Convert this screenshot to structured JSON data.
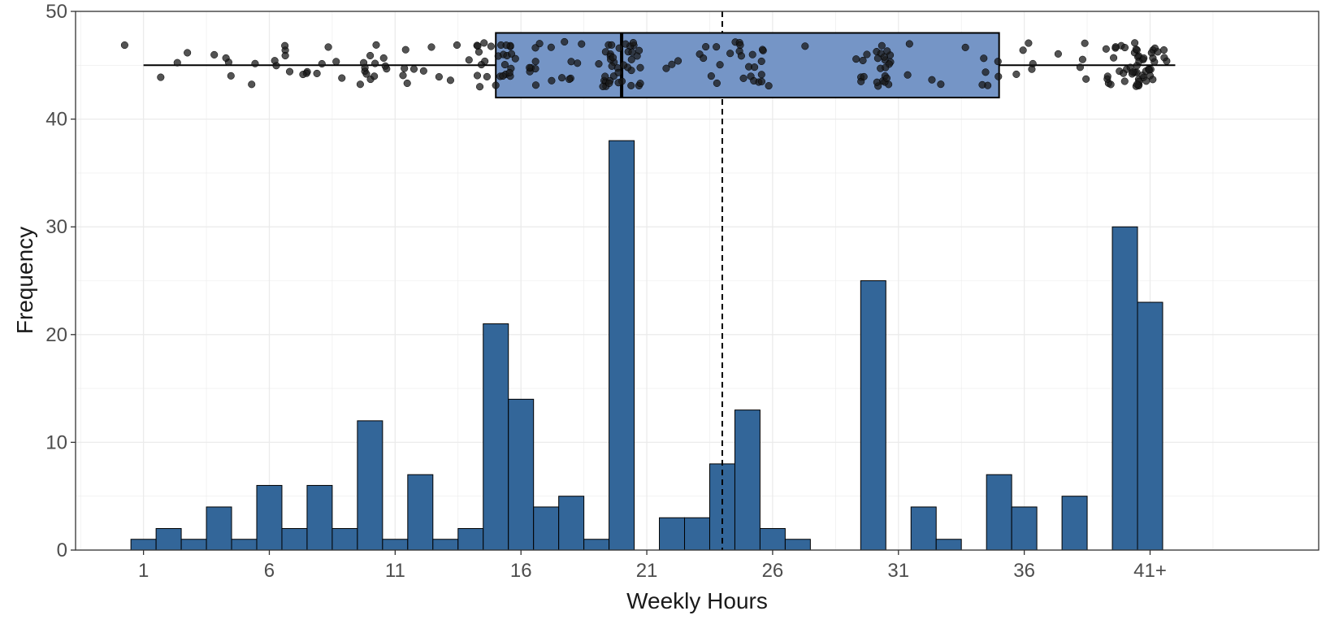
{
  "chart_data": {
    "type": "bar",
    "subtype": "histogram-with-boxplot",
    "xlabel": "Weekly Hours",
    "ylabel": "Frequency",
    "ylim": [
      0,
      50
    ],
    "xlim": [
      -1.7,
      47.7
    ],
    "y_ticks": [
      0,
      10,
      20,
      30,
      40,
      50
    ],
    "x_ticks": [
      {
        "value": 1,
        "label": "1"
      },
      {
        "value": 6,
        "label": "6"
      },
      {
        "value": 11,
        "label": "11"
      },
      {
        "value": 16,
        "label": "16"
      },
      {
        "value": 21,
        "label": "21"
      },
      {
        "value": 26,
        "label": "26"
      },
      {
        "value": 31,
        "label": "31"
      },
      {
        "value": 36,
        "label": "36"
      },
      {
        "value": 41,
        "label": "41+"
      }
    ],
    "grid": true,
    "bin_width": 1,
    "bins": [
      {
        "x": 1,
        "count": 1
      },
      {
        "x": 2,
        "count": 2
      },
      {
        "x": 3,
        "count": 1
      },
      {
        "x": 4,
        "count": 4
      },
      {
        "x": 5,
        "count": 1
      },
      {
        "x": 6,
        "count": 6
      },
      {
        "x": 7,
        "count": 2
      },
      {
        "x": 8,
        "count": 6
      },
      {
        "x": 9,
        "count": 2
      },
      {
        "x": 10,
        "count": 12
      },
      {
        "x": 11,
        "count": 1
      },
      {
        "x": 12,
        "count": 7
      },
      {
        "x": 13,
        "count": 1
      },
      {
        "x": 14,
        "count": 2
      },
      {
        "x": 15,
        "count": 21
      },
      {
        "x": 16,
        "count": 14
      },
      {
        "x": 17,
        "count": 4
      },
      {
        "x": 18,
        "count": 5
      },
      {
        "x": 19,
        "count": 1
      },
      {
        "x": 20,
        "count": 38
      },
      {
        "x": 22,
        "count": 3
      },
      {
        "x": 23,
        "count": 3
      },
      {
        "x": 24,
        "count": 8
      },
      {
        "x": 25,
        "count": 13
      },
      {
        "x": 26,
        "count": 2
      },
      {
        "x": 27,
        "count": 1
      },
      {
        "x": 30,
        "count": 25
      },
      {
        "x": 32,
        "count": 4
      },
      {
        "x": 33,
        "count": 1
      },
      {
        "x": 35,
        "count": 7
      },
      {
        "x": 36,
        "count": 4
      },
      {
        "x": 38,
        "count": 5
      },
      {
        "x": 40,
        "count": 30
      },
      {
        "x": 41,
        "count": 23
      }
    ],
    "mean": 24.0,
    "boxplot": {
      "min": 1,
      "q1": 15,
      "median": 20,
      "q3": 35,
      "max": 42,
      "y_center": 45,
      "y_low": 42,
      "y_high": 48
    },
    "colors": {
      "bar_fill": "#336699",
      "bar_stroke": "#000000",
      "box_fill": "#7595c6",
      "point_fill": "#1a1a1a",
      "grid": "#ebebeb",
      "mean_line": "#000000"
    }
  }
}
